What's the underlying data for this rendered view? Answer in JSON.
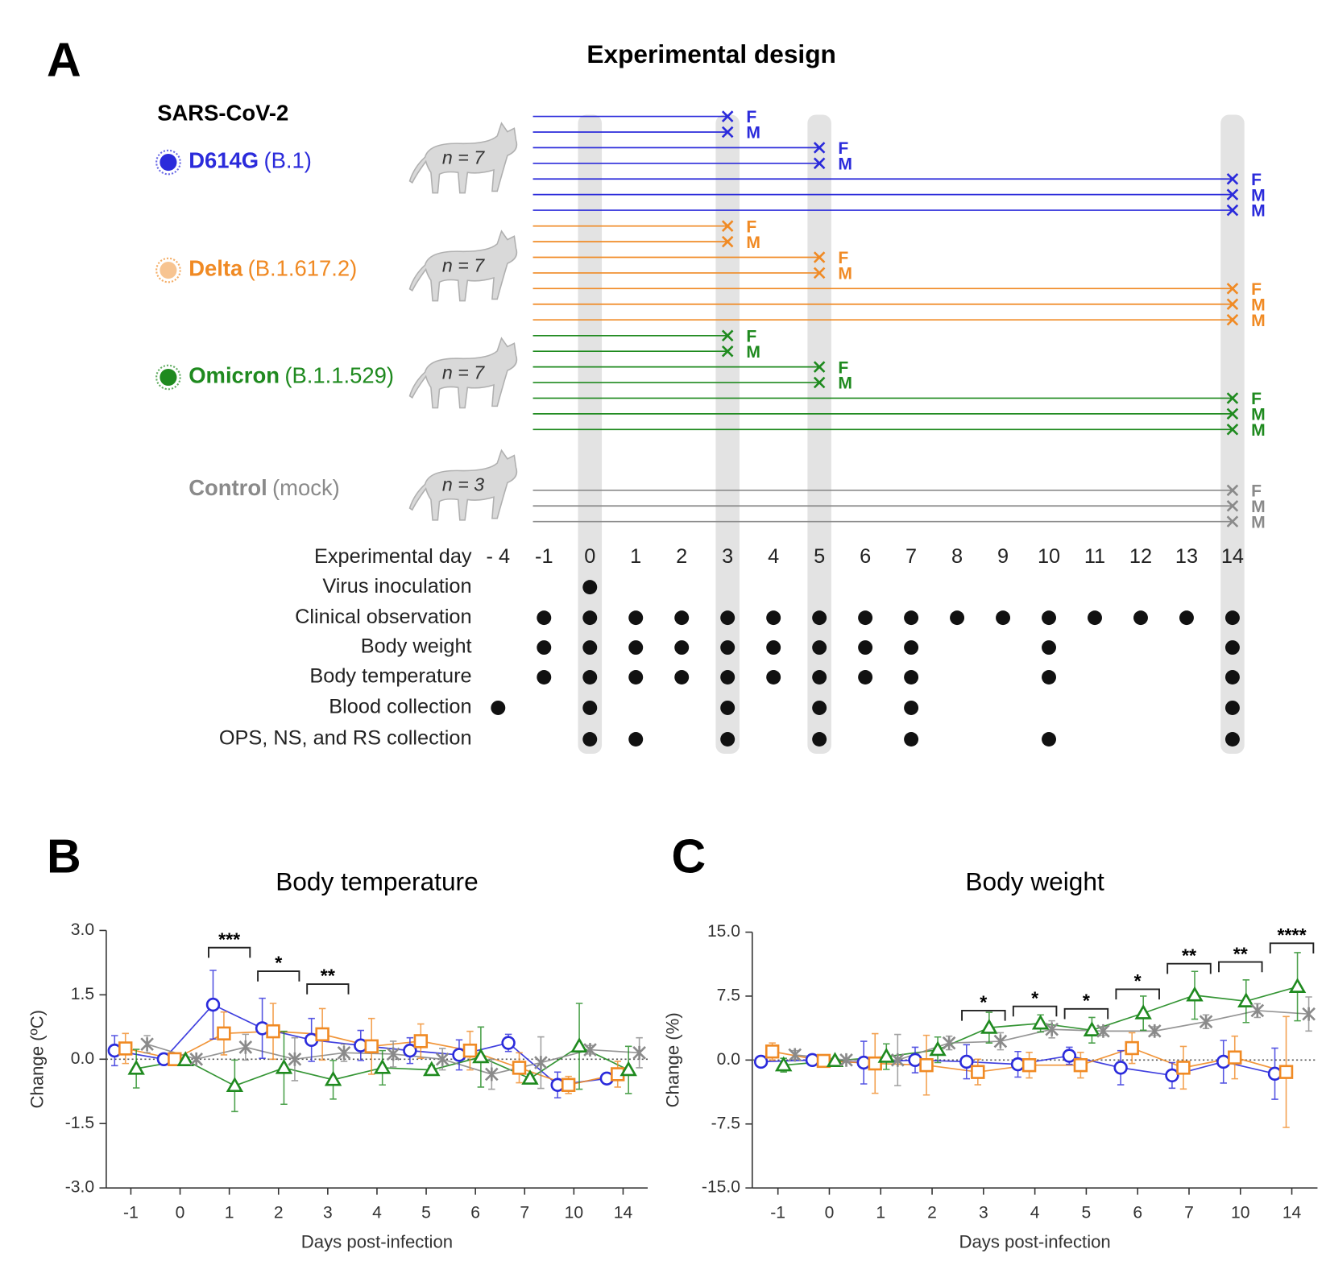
{
  "experiment": {
    "label": "A",
    "title": "Experimental design",
    "virus_heading": "SARS-CoV-2",
    "groups": [
      {
        "name": "D614G",
        "lineage": "(B.1)",
        "color": "#2b2bdb",
        "n": "n = 7",
        "endpoints": [
          {
            "day": 3,
            "sex": "F"
          },
          {
            "day": 3,
            "sex": "M"
          },
          {
            "day": 5,
            "sex": "F"
          },
          {
            "day": 5,
            "sex": "M"
          },
          {
            "day": 14,
            "sex": "F"
          },
          {
            "day": 14,
            "sex": "M"
          },
          {
            "day": 14,
            "sex": "M"
          }
        ]
      },
      {
        "name": "Delta",
        "lineage": "(B.1.617.2)",
        "color": "#f08a24",
        "n": "n = 7",
        "endpoints": [
          {
            "day": 3,
            "sex": "F"
          },
          {
            "day": 3,
            "sex": "M"
          },
          {
            "day": 5,
            "sex": "F"
          },
          {
            "day": 5,
            "sex": "M"
          },
          {
            "day": 14,
            "sex": "F"
          },
          {
            "day": 14,
            "sex": "M"
          },
          {
            "day": 14,
            "sex": "M"
          }
        ]
      },
      {
        "name": "Omicron",
        "lineage": "(B.1.1.529)",
        "color": "#1f8a1f",
        "n": "n = 7",
        "endpoints": [
          {
            "day": 3,
            "sex": "F"
          },
          {
            "day": 3,
            "sex": "M"
          },
          {
            "day": 5,
            "sex": "F"
          },
          {
            "day": 5,
            "sex": "M"
          },
          {
            "day": 14,
            "sex": "F"
          },
          {
            "day": 14,
            "sex": "M"
          },
          {
            "day": 14,
            "sex": "M"
          }
        ]
      },
      {
        "name": "Control",
        "lineage": "(mock)",
        "color": "#8a8a8a",
        "n": "n = 3",
        "endpoints": [
          {
            "day": 14,
            "sex": "F"
          },
          {
            "day": 14,
            "sex": "M"
          },
          {
            "day": 14,
            "sex": "M"
          }
        ]
      }
    ],
    "day_label": "Experimental day",
    "days": [
      {
        "value": -4,
        "label": "- 4"
      },
      -1,
      0,
      1,
      2,
      3,
      4,
      5,
      6,
      7,
      8,
      9,
      10,
      11,
      12,
      13,
      14
    ],
    "highlight_days": [
      0,
      3,
      5,
      14
    ],
    "schedule": [
      {
        "label": "Virus inoculation",
        "days": [
          0
        ]
      },
      {
        "label": "Clinical observation",
        "days": [
          -1,
          0,
          1,
          2,
          3,
          4,
          5,
          6,
          7,
          8,
          9,
          10,
          11,
          12,
          13,
          14
        ]
      },
      {
        "label": "Body weight",
        "days": [
          -1,
          0,
          1,
          2,
          3,
          4,
          5,
          6,
          7,
          10,
          14
        ]
      },
      {
        "label": "Body temperature",
        "days": [
          -1,
          0,
          1,
          2,
          3,
          4,
          5,
          6,
          7,
          10,
          14
        ]
      },
      {
        "label": "Blood collection",
        "days": [
          -4,
          0,
          3,
          5,
          7,
          14
        ]
      },
      {
        "label": "OPS, NS, and RS collection",
        "days": [
          0,
          1,
          3,
          5,
          7,
          10,
          14
        ]
      }
    ]
  },
  "chart_data": [
    {
      "type": "line",
      "label": "B",
      "title": "Body temperature",
      "x_label": "Days post-infection",
      "y_label": "Change (ºC)",
      "categories": [
        "-1",
        "0",
        "1",
        "2",
        "3",
        "4",
        "5",
        "6",
        "7",
        "10",
        "14"
      ],
      "ylim": [
        -3,
        3
      ],
      "yticks": [
        {
          "value": 3,
          "label": "3.0"
        },
        {
          "value": 1.5,
          "label": "1.5"
        },
        {
          "value": 0,
          "label": "0.0"
        },
        {
          "value": -1.5,
          "label": "-1.5"
        },
        {
          "value": -3,
          "label": "-3.0"
        }
      ],
      "series": [
        {
          "color": "#2b2bdb",
          "marker": "circle",
          "values": [
            0.2,
            0.0,
            1.27,
            0.72,
            0.45,
            0.32,
            0.2,
            0.1,
            0.38,
            -0.6,
            -0.45
          ],
          "errors": [
            0.35,
            0.05,
            0.8,
            0.7,
            0.5,
            0.35,
            0.3,
            0.35,
            0.2,
            0.3,
            0.1
          ]
        },
        {
          "color": "#f08a24",
          "marker": "square",
          "values": [
            0.25,
            0.0,
            0.6,
            0.65,
            0.58,
            0.3,
            0.42,
            0.2,
            -0.2,
            -0.6,
            -0.35
          ],
          "errors": [
            0.35,
            0.05,
            0.5,
            0.65,
            0.6,
            0.65,
            0.4,
            0.45,
            0.35,
            0.2,
            0.3
          ]
        },
        {
          "color": "#1f8a1f",
          "marker": "triangle",
          "values": [
            -0.22,
            -0.02,
            -0.62,
            -0.2,
            -0.48,
            -0.2,
            -0.25,
            0.05,
            -0.45,
            0.3,
            -0.25
          ],
          "errors": [
            0.45,
            0.05,
            0.6,
            0.85,
            0.45,
            0.4,
            0.1,
            0.7,
            0.1,
            1.0,
            0.55
          ]
        },
        {
          "color": "#8a8a8a",
          "marker": "x",
          "values": [
            0.35,
            0.0,
            0.28,
            0.0,
            0.15,
            0.12,
            0.0,
            -0.35,
            -0.08,
            0.22,
            0.15
          ],
          "errors": [
            0.2,
            0.05,
            0.3,
            0.5,
            0.2,
            0.3,
            0.25,
            0.35,
            0.6,
            0.1,
            0.35
          ]
        }
      ],
      "annotations": [
        {
          "category": "1",
          "text": "***",
          "y": 2.6
        },
        {
          "category": "2",
          "text": "*",
          "y": 2.05
        },
        {
          "category": "3",
          "text": "**",
          "y": 1.75
        }
      ]
    },
    {
      "type": "line",
      "label": "C",
      "title": "Body weight",
      "x_label": "Days post-infection",
      "y_label": "Change (%)",
      "categories": [
        "-1",
        "0",
        "1",
        "2",
        "3",
        "4",
        "5",
        "6",
        "7",
        "10",
        "14"
      ],
      "ylim": [
        -15,
        15
      ],
      "yticks": [
        {
          "value": 15,
          "label": "15.0"
        },
        {
          "value": 7.5,
          "label": "7.5"
        },
        {
          "value": 0,
          "label": "0.0"
        },
        {
          "value": -7.5,
          "label": "-7.5"
        },
        {
          "value": -15,
          "label": "-15.0"
        }
      ],
      "series": [
        {
          "color": "#2b2bdb",
          "marker": "circle",
          "values": [
            -0.2,
            0.0,
            -0.3,
            0.0,
            -0.2,
            -0.5,
            0.5,
            -0.9,
            -1.8,
            -0.2,
            -1.6
          ],
          "errors": [
            0.5,
            0.2,
            2.5,
            1.5,
            2.0,
            1.5,
            1.0,
            2.0,
            1.5,
            2.5,
            3.0
          ]
        },
        {
          "color": "#f08a24",
          "marker": "square",
          "values": [
            1.0,
            -0.1,
            -0.4,
            -0.6,
            -1.4,
            -0.6,
            -0.6,
            1.4,
            -0.9,
            0.3,
            -1.4
          ],
          "errors": [
            1.0,
            0.3,
            3.5,
            3.5,
            1.5,
            1.5,
            1.5,
            1.8,
            2.5,
            2.5,
            6.5
          ]
        },
        {
          "color": "#1f8a1f",
          "marker": "triangle",
          "values": [
            -0.6,
            -0.1,
            0.4,
            1.2,
            3.8,
            4.3,
            3.5,
            5.5,
            7.6,
            6.9,
            8.6
          ],
          "errors": [
            0.8,
            0.2,
            1.5,
            1.5,
            1.8,
            1.0,
            1.5,
            2.0,
            2.8,
            2.5,
            4.0
          ]
        },
        {
          "color": "#8a8a8a",
          "marker": "x",
          "values": [
            0.6,
            0.0,
            0.0,
            2.0,
            2.2,
            3.6,
            3.4,
            3.4,
            4.5,
            5.8,
            5.4
          ],
          "errors": [
            0.5,
            0.2,
            3.0,
            0.8,
            1.0,
            1.0,
            0.5,
            0.5,
            0.8,
            0.8,
            2.0
          ]
        }
      ],
      "annotations": [
        {
          "category": "3",
          "text": "*",
          "y": 5.8
        },
        {
          "category": "4",
          "text": "*",
          "y": 6.3
        },
        {
          "category": "5",
          "text": "*",
          "y": 6.0
        },
        {
          "category": "6",
          "text": "*",
          "y": 8.3
        },
        {
          "category": "7",
          "text": "**",
          "y": 11.3
        },
        {
          "category": "10",
          "text": "**",
          "y": 11.5
        },
        {
          "category": "14",
          "text": "****",
          "y": 13.7
        }
      ]
    }
  ]
}
